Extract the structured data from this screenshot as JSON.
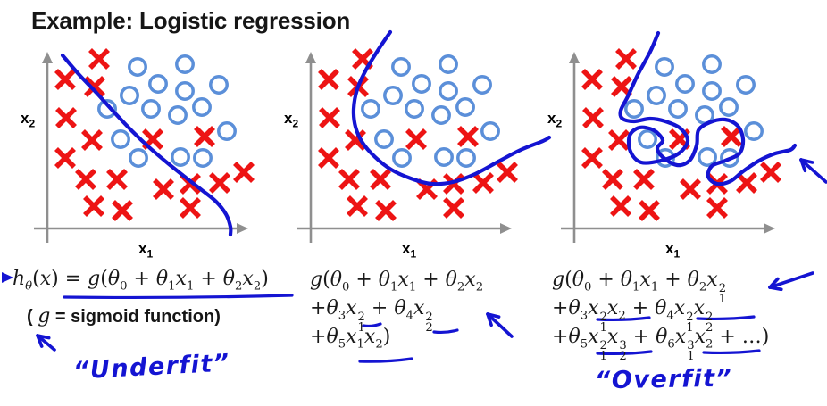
{
  "title": "Example: Logistic regression",
  "colors": {
    "cross": "#ed1414",
    "circle": "#5b8fd9",
    "boundary": "#1414d2",
    "ink": "#1414d2",
    "axis": "#8f8f8f",
    "text": "#161616"
  },
  "chart_data": {
    "type": "scatter",
    "description": "three identical scatter panels with hand-drawn decision boundaries",
    "xlabel": "x_1",
    "ylabel": "x_2",
    "crosses": [
      [
        91,
        16
      ],
      [
        53,
        39
      ],
      [
        86,
        47
      ],
      [
        54,
        82
      ],
      [
        83,
        107
      ],
      [
        151,
        106
      ],
      [
        209,
        103
      ],
      [
        53,
        127
      ],
      [
        76,
        151
      ],
      [
        111,
        151
      ],
      [
        163,
        162
      ],
      [
        193,
        156
      ],
      [
        226,
        155
      ],
      [
        253,
        143
      ],
      [
        85,
        181
      ],
      [
        117,
        186
      ],
      [
        193,
        183
      ]
    ],
    "circles": [
      [
        134,
        25
      ],
      [
        187,
        22
      ],
      [
        157,
        44
      ],
      [
        187,
        52
      ],
      [
        225,
        45
      ],
      [
        125,
        57
      ],
      [
        100,
        72
      ],
      [
        149,
        72
      ],
      [
        179,
        79
      ],
      [
        206,
        70
      ],
      [
        234,
        97
      ],
      [
        115,
        106
      ],
      [
        135,
        127
      ],
      [
        182,
        126
      ],
      [
        207,
        127
      ]
    ],
    "panels": [
      {
        "name": "underfit-panel",
        "offset": [
          20,
          50
        ],
        "boundary": [
          [
            50,
            12
          ],
          [
            68,
            33
          ],
          [
            88,
            54
          ],
          [
            108,
            76
          ],
          [
            128,
            97
          ],
          [
            148,
            116
          ],
          [
            168,
            133
          ],
          [
            188,
            149
          ],
          [
            206,
            163
          ],
          [
            222,
            176
          ],
          [
            233,
            190
          ],
          [
            238,
            204
          ],
          [
            238,
            213
          ]
        ]
      },
      {
        "name": "medium-fit-panel",
        "offset": [
          315,
          50
        ],
        "boundary": [
          [
            122,
            -14
          ],
          [
            109,
            5
          ],
          [
            95,
            28
          ],
          [
            85,
            50
          ],
          [
            81,
            72
          ],
          [
            83,
            92
          ],
          [
            91,
            110
          ],
          [
            105,
            126
          ],
          [
            123,
            140
          ],
          [
            145,
            150
          ],
          [
            168,
            156
          ],
          [
            192,
            154
          ],
          [
            217,
            145
          ],
          [
            243,
            131
          ],
          [
            268,
            118
          ],
          [
            293,
            108
          ],
          [
            300,
            104
          ]
        ]
      },
      {
        "name": "overfit-panel",
        "offset": [
          610,
          50
        ],
        "boundary": [
          [
            127,
            -13
          ],
          [
            118,
            8
          ],
          [
            104,
            34
          ],
          [
            93,
            58
          ],
          [
            85,
            74
          ],
          [
            87,
            83
          ],
          [
            100,
            86
          ],
          [
            118,
            83
          ],
          [
            135,
            86
          ],
          [
            152,
            94
          ],
          [
            160,
            108
          ],
          [
            150,
            122
          ],
          [
            130,
            130
          ],
          [
            108,
            132
          ],
          [
            96,
            120
          ],
          [
            95,
            102
          ],
          [
            106,
            93
          ],
          [
            122,
            96
          ],
          [
            132,
            107
          ],
          [
            126,
            116
          ],
          [
            132,
            126
          ],
          [
            148,
            135
          ],
          [
            162,
            130
          ],
          [
            170,
            113
          ],
          [
            172,
            96
          ],
          [
            185,
            87
          ],
          [
            202,
            84
          ],
          [
            216,
            91
          ],
          [
            222,
            106
          ],
          [
            218,
            122
          ],
          [
            202,
            130
          ],
          [
            187,
            136
          ],
          [
            183,
            148
          ],
          [
            193,
            156
          ],
          [
            208,
            153
          ],
          [
            222,
            142
          ],
          [
            240,
            130
          ],
          [
            258,
            122
          ],
          [
            275,
            118
          ],
          [
            280,
            113
          ]
        ]
      }
    ]
  },
  "formulas": {
    "left_line": "h_θ(x) = g(θ_0 + θ_1x_1 + θ_2x_2)",
    "note_open": "( ",
    "note_g": "g",
    "note_rest": " = sigmoid function)",
    "mid_lines": [
      "g(θ_0 + θ_1x_1 + θ_2x_2",
      "+θ_3x_1^2 + θ_4x_2^2",
      "+θ_5x_1x_2)"
    ],
    "right_lines": [
      "g(θ_0 + θ_1x_1 + θ_2x_1^2",
      "+θ_3x_1^2x_2 + θ_4x_1^2x_2^2",
      "+θ_5x_1^2x_2^3 + θ_6x_1^3x_2 + …)"
    ]
  },
  "annotations": {
    "underfit": "“Underfit”",
    "overfit": "“Overfit”"
  },
  "ink": {
    "chevron": [
      [
        2,
        305
      ],
      [
        15,
        311
      ],
      [
        2,
        317
      ]
    ],
    "underlines": [
      {
        "name": "underline-left-formula",
        "seg": [
          72,
          333,
          327,
          331
        ]
      },
      {
        "name": "underline-mid-x1sq",
        "seg": [
          407,
          365,
          426,
          363
        ]
      },
      {
        "name": "underline-mid-x2sq",
        "seg": [
          486,
          372,
          512,
          370
        ]
      },
      {
        "name": "underline-mid-x1x2",
        "seg": [
          403,
          405,
          461,
          402
        ]
      },
      {
        "name": "underline-right-l2a",
        "seg": [
          669,
          358,
          727,
          356
        ]
      },
      {
        "name": "underline-right-l2b",
        "seg": [
          781,
          357,
          844,
          355
        ]
      },
      {
        "name": "underline-right-l3a",
        "seg": [
          669,
          396,
          729,
          394
        ]
      },
      {
        "name": "underline-right-l3b",
        "seg": [
          788,
          395,
          850,
          393
        ]
      }
    ],
    "arrows": [
      {
        "name": "underfit-arrow",
        "head": [
          42,
          376
        ],
        "tail": [
          61,
          392
        ]
      },
      {
        "name": "mid-formula-arrow",
        "head": [
          546,
          352
        ],
        "tail": [
          573,
          377
        ]
      },
      {
        "name": "right-formula-arrow",
        "head": [
          862,
          322
        ],
        "tail": [
          910,
          306
        ]
      },
      {
        "name": "overfit-plot-arrow",
        "head": [
          897,
          179
        ],
        "tail": [
          925,
          204
        ]
      }
    ]
  }
}
